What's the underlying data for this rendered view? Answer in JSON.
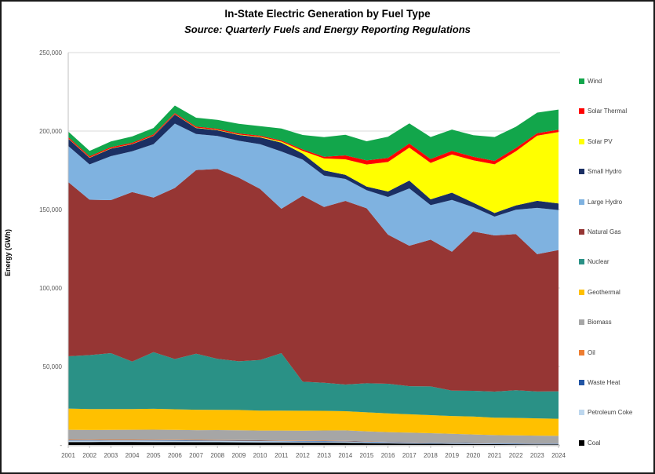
{
  "title": "In-State Electric Generation by Fuel Type",
  "subtitle": "Source: Quarterly Fuels and Energy Reporting Regulations",
  "colors": {
    "background": "#FFFFFF",
    "frame_border": "#1A1A1A",
    "gridline": "#D9D9D9",
    "axis_line": "#BFBFBF",
    "tick_text": "#595959",
    "legend_text": "#404040"
  },
  "chart_data": {
    "type": "area",
    "stacked": true,
    "title": "In-State Electric Generation by Fuel Type",
    "subtitle": "Source: Quarterly Fuels and Energy Reporting Regulations",
    "xlabel": "",
    "ylabel": "Energy (GWh)",
    "ylim": [
      0,
      250000
    ],
    "y_tick_step": 50000,
    "y_tick_labels": [
      "-",
      "50,000",
      "100,000",
      "150,000",
      "200,000",
      "250,000"
    ],
    "grid": "horizontal",
    "legend_position": "right",
    "legend_order_top_to_bottom": [
      "Wind",
      "Solar Thermal",
      "Solar PV",
      "Small Hydro",
      "Large Hydro",
      "Natural Gas",
      "Nuclear",
      "Geothermal",
      "Biomass",
      "Oil",
      "Waste Heat",
      "Petroleum Coke",
      "Coal"
    ],
    "categories": [
      2001,
      2002,
      2003,
      2004,
      2005,
      2006,
      2007,
      2008,
      2009,
      2010,
      2011,
      2012,
      2013,
      2014,
      2015,
      2016,
      2017,
      2018,
      2019,
      2020,
      2021,
      2022,
      2023,
      2024
    ],
    "series_stacking_note": "listed bottom of stack to top",
    "series": [
      {
        "name": "Coal",
        "color": "#000000",
        "values": [
          1900,
          1900,
          1950,
          1950,
          1900,
          1850,
          1800,
          1750,
          1700,
          1650,
          1600,
          1550,
          1500,
          1450,
          1200,
          1000,
          900,
          800,
          700,
          600,
          500,
          450,
          400,
          350
        ]
      },
      {
        "name": "Petroleum Coke",
        "color": "#BDD7EE",
        "values": [
          900,
          900,
          900,
          900,
          900,
          900,
          850,
          850,
          800,
          800,
          750,
          700,
          700,
          650,
          600,
          550,
          500,
          450,
          400,
          350,
          300,
          300,
          250,
          250
        ]
      },
      {
        "name": "Waste Heat",
        "color": "#2255A4",
        "values": [
          300,
          300,
          300,
          300,
          300,
          300,
          300,
          300,
          300,
          300,
          300,
          300,
          300,
          300,
          300,
          300,
          300,
          250,
          250,
          250,
          250,
          250,
          250,
          250
        ]
      },
      {
        "name": "Oil",
        "color": "#ED7D31",
        "values": [
          400,
          350,
          350,
          350,
          350,
          300,
          300,
          300,
          300,
          250,
          250,
          250,
          250,
          200,
          200,
          150,
          150,
          100,
          100,
          100,
          50,
          50,
          50,
          50
        ]
      },
      {
        "name": "Biomass",
        "color": "#A6A6A6",
        "values": [
          6200,
          6100,
          6100,
          6200,
          6300,
          6300,
          6200,
          6300,
          6300,
          6200,
          6300,
          6300,
          6500,
          6700,
          6400,
          6200,
          6000,
          5900,
          5700,
          5400,
          5200,
          5100,
          5000,
          4900
        ]
      },
      {
        "name": "Geothermal",
        "color": "#FFC000",
        "values": [
          13500,
          13300,
          13300,
          13200,
          13300,
          13100,
          13000,
          12900,
          12900,
          12700,
          12700,
          12700,
          12500,
          12200,
          12100,
          11900,
          11700,
          11500,
          11300,
          11400,
          11100,
          11100,
          11000,
          10900
        ]
      },
      {
        "name": "Nuclear",
        "color": "#2A9186",
        "values": [
          33300,
          34400,
          35600,
          30200,
          36100,
          32000,
          35700,
          32500,
          31000,
          32200,
          36600,
          18500,
          17900,
          17000,
          18500,
          18900,
          17900,
          18300,
          16200,
          16400,
          16600,
          17600,
          17100,
          17500
        ]
      },
      {
        "name": "Natural Gas",
        "color": "#963634",
        "values": [
          111000,
          99000,
          97500,
          108000,
          98500,
          109000,
          117000,
          121000,
          117000,
          109000,
          92000,
          118500,
          112000,
          117000,
          111500,
          95000,
          89500,
          93500,
          88500,
          101500,
          99500,
          99500,
          87500,
          90000
        ]
      },
      {
        "name": "Large Hydro",
        "color": "#7FB2E0",
        "values": [
          23000,
          22500,
          28000,
          26000,
          34000,
          41000,
          23000,
          21000,
          23500,
          28500,
          36500,
          23000,
          20000,
          14000,
          11500,
          24000,
          36500,
          22000,
          33000,
          15500,
          12000,
          15500,
          29500,
          25500
        ]
      },
      {
        "name": "Small Hydro",
        "color": "#1B2F63",
        "values": [
          4700,
          4200,
          4800,
          4500,
          5300,
          5800,
          3800,
          3600,
          3700,
          4400,
          5600,
          3800,
          3300,
          2600,
          2300,
          3500,
          5000,
          3700,
          4600,
          2900,
          2300,
          2800,
          4500,
          4200
        ]
      },
      {
        "name": "Solar PV",
        "color": "#FFFF00",
        "values": [
          200,
          200,
          200,
          200,
          200,
          200,
          250,
          250,
          300,
          350,
          700,
          1800,
          7600,
          9900,
          14100,
          18800,
          21000,
          23200,
          24300,
          27000,
          31000,
          34500,
          41500,
          45500
        ]
      },
      {
        "name": "Solar Thermal",
        "color": "#FF0000",
        "values": [
          800,
          800,
          750,
          750,
          700,
          700,
          700,
          700,
          700,
          700,
          700,
          900,
          1100,
          2500,
          2600,
          2550,
          2600,
          2500,
          2300,
          2250,
          2200,
          2100,
          1600,
          1500
        ]
      },
      {
        "name": "Wind",
        "color": "#12A64B",
        "values": [
          3500,
          3400,
          3600,
          4000,
          4100,
          4800,
          5600,
          5700,
          6100,
          6100,
          7600,
          9200,
          12500,
          13100,
          12200,
          13500,
          12800,
          14000,
          13600,
          13700,
          15200,
          13500,
          13100,
          12800
        ]
      }
    ]
  }
}
